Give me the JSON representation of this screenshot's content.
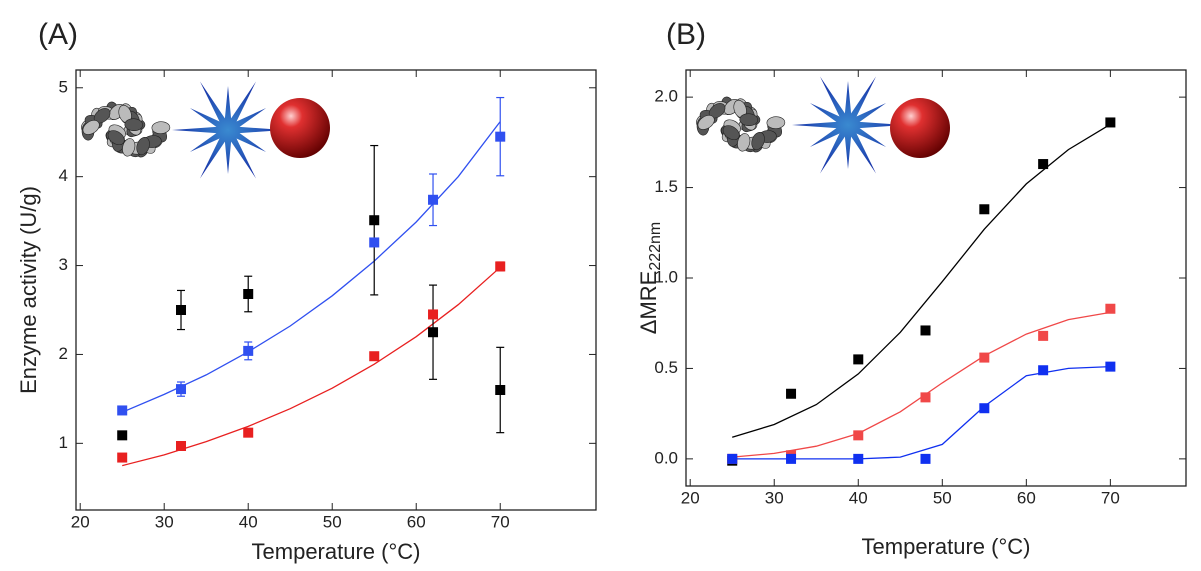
{
  "chart_data": [
    {
      "type": "scatter",
      "panel_label": "(A)",
      "x_label": "Temperature (°C)",
      "y_label": "Enzyme activity (U/g)",
      "xlim": [
        19.5,
        81.4
      ],
      "ylim": [
        0.25,
        5.2
      ],
      "xticks": [
        20,
        30,
        40,
        50,
        60,
        70
      ],
      "yticks": [
        1,
        2,
        3,
        4,
        5
      ],
      "x": [
        25,
        32,
        40,
        55,
        62,
        70
      ],
      "series": [
        {
          "color": "#000000",
          "values": [
            1.09,
            2.5,
            2.68,
            3.51,
            2.25,
            1.6
          ],
          "errors": [
            null,
            0.22,
            0.2,
            0.84,
            0.53,
            0.48
          ]
        },
        {
          "color": "#3050f0",
          "values": [
            1.37,
            1.61,
            2.04,
            3.26,
            3.74,
            4.45
          ],
          "errors": [
            null,
            0.08,
            0.1,
            null,
            0.29,
            0.44
          ]
        },
        {
          "color": "#e82020",
          "values": [
            0.84,
            0.97,
            1.12,
            1.98,
            2.45,
            2.99
          ],
          "errors": [
            null,
            null,
            null,
            null,
            null,
            0.05
          ]
        }
      ],
      "fits": [
        {
          "color": "#3050f0",
          "x": [
            25,
            30,
            35,
            40,
            45,
            50,
            55,
            60,
            65,
            70
          ],
          "values": [
            1.35,
            1.55,
            1.77,
            2.03,
            2.32,
            2.66,
            3.05,
            3.49,
            4.0,
            4.62
          ]
        },
        {
          "color": "#e82020",
          "x": [
            25,
            30,
            35,
            40,
            45,
            50,
            55,
            60,
            65,
            70
          ],
          "values": [
            0.75,
            0.87,
            1.02,
            1.19,
            1.39,
            1.62,
            1.89,
            2.2,
            2.56,
            2.98
          ]
        }
      ]
    },
    {
      "type": "scatter",
      "panel_label": "(B)",
      "x_label": "Temperature (°C)",
      "y_label": "ΔMRE",
      "y_label_sub": "222nm",
      "xlim": [
        19.5,
        79.0
      ],
      "ylim": [
        -0.15,
        2.15
      ],
      "xticks": [
        20,
        30,
        40,
        50,
        60,
        70
      ],
      "yticks": [
        {
          "value": 0,
          "label": "0.0"
        },
        {
          "value": 0.5,
          "label": "0.5"
        },
        {
          "value": 1,
          "label": "1.0"
        },
        {
          "value": 1.5,
          "label": "1.5"
        },
        {
          "value": 2,
          "label": "2.0"
        }
      ],
      "x": [
        25,
        32,
        40,
        48,
        55,
        62,
        70
      ],
      "series": [
        {
          "color": "#000000",
          "values": [
            -0.01,
            0.36,
            0.55,
            0.71,
            1.38,
            1.63,
            1.86
          ]
        },
        {
          "color": "#f04848",
          "values": [
            0,
            0.02,
            0.13,
            0.34,
            0.56,
            0.68,
            0.83
          ]
        },
        {
          "color": "#1030f0",
          "values": [
            0,
            0,
            0,
            0,
            0.28,
            0.49,
            0.51
          ]
        }
      ],
      "fits": [
        {
          "color": "#000000",
          "x": [
            25,
            30,
            35,
            40,
            45,
            50,
            55,
            60,
            65,
            70
          ],
          "values": [
            0.12,
            0.19,
            0.3,
            0.47,
            0.7,
            0.98,
            1.27,
            1.52,
            1.71,
            1.85
          ]
        },
        {
          "color": "#f04848",
          "x": [
            25,
            30,
            35,
            40,
            45,
            50,
            55,
            60,
            65,
            70
          ],
          "values": [
            0.01,
            0.03,
            0.07,
            0.14,
            0.26,
            0.42,
            0.57,
            0.69,
            0.77,
            0.81
          ]
        },
        {
          "color": "#1030f0",
          "x": [
            25,
            30,
            35,
            40,
            45,
            50,
            55,
            60,
            65,
            70
          ],
          "values": [
            0,
            0,
            0,
            0,
            0.01,
            0.08,
            0.29,
            0.46,
            0.5,
            0.51
          ]
        }
      ]
    }
  ]
}
